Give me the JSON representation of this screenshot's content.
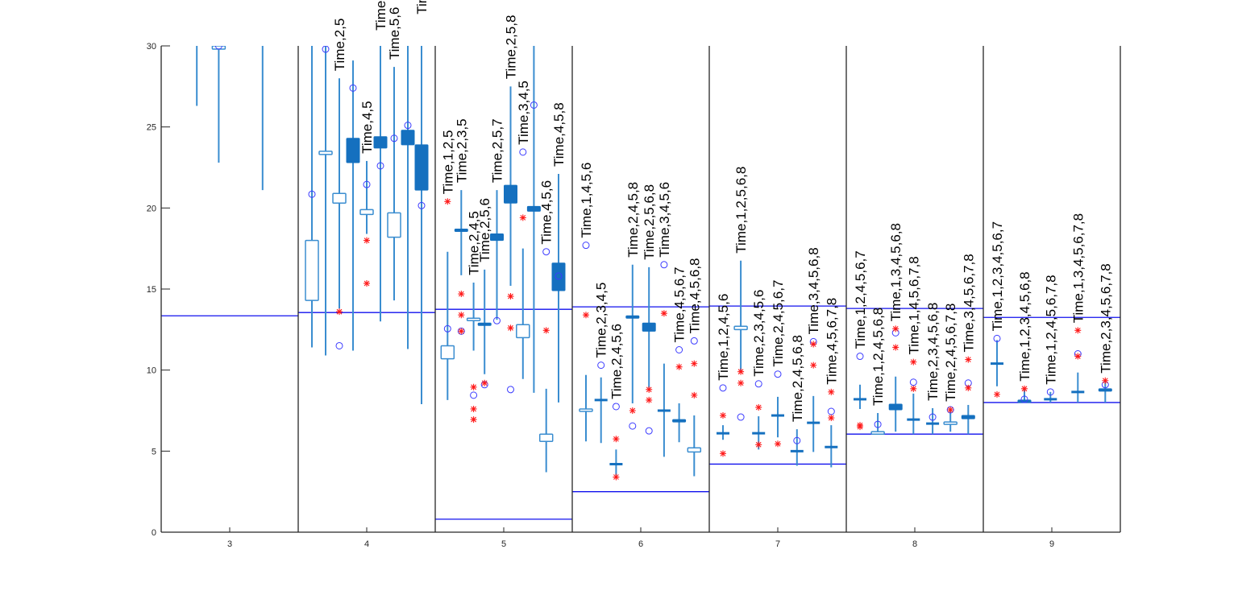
{
  "chart_data": {
    "type": "boxplot",
    "title": "",
    "xlabel": "",
    "ylabel": "",
    "ylim": [
      0,
      30
    ],
    "xlim": [
      2.5,
      9.5
    ],
    "x_ticks": [
      3,
      4,
      5,
      6,
      7,
      8,
      9
    ],
    "y_ticks": [
      0,
      5,
      10,
      15,
      20,
      25,
      30
    ],
    "group_separators": [
      3.5,
      4.5,
      5.5,
      6.5,
      7.5,
      8.5
    ],
    "colors": {
      "box": "#3a8dd0",
      "filled": "#1570bf",
      "circle": "#3b3bff",
      "star": "#ff1a1a",
      "reference_line": "#1010ee",
      "axis": "#262626"
    },
    "reference_lines": [
      {
        "x_range": [
          2.5,
          3.5
        ],
        "y": 13.35
      },
      {
        "x_range": [
          3.5,
          4.5
        ],
        "y": 13.55
      },
      {
        "x_range": [
          4.5,
          5.5
        ],
        "y": 0.8
      },
      {
        "x_range": [
          4.5,
          5.5
        ],
        "y": 13.75
      },
      {
        "x_range": [
          5.5,
          6.5
        ],
        "y": 2.5
      },
      {
        "x_range": [
          5.5,
          6.5
        ],
        "y": 13.9
      },
      {
        "x_range": [
          6.5,
          7.5
        ],
        "y": 4.2
      },
      {
        "x_range": [
          6.5,
          7.5
        ],
        "y": 13.95
      },
      {
        "x_range": [
          7.5,
          8.5
        ],
        "y": 6.05
      },
      {
        "x_range": [
          7.5,
          8.5
        ],
        "y": 13.8
      },
      {
        "x_range": [
          8.5,
          9.5
        ],
        "y": 8.0
      },
      {
        "x_range": [
          8.5,
          9.5
        ],
        "y": 13.25
      }
    ],
    "boxes": [
      {
        "x": 2.76,
        "t": "open",
        "q": [
          31,
          32
        ],
        "w": [
          26.3,
          40
        ],
        "o": [],
        "s": [],
        "label": ""
      },
      {
        "x": 2.92,
        "t": "open",
        "q": [
          29.8,
          30
        ],
        "w": [
          22.8,
          40
        ],
        "o": [
          30
        ],
        "s": [],
        "label": ""
      },
      {
        "x": 3.24,
        "t": "open",
        "q": [
          31,
          32
        ],
        "w": [
          21.1,
          40
        ],
        "o": [],
        "s": [],
        "label": ""
      },
      {
        "x": 3.6,
        "t": "open",
        "q": [
          14.3,
          18.0
        ],
        "w": [
          11.4,
          40
        ],
        "o": [
          20.85
        ],
        "s": [],
        "label": ""
      },
      {
        "x": 3.7,
        "t": "open",
        "q": [
          23.3,
          23.5
        ],
        "w": [
          10.9,
          40
        ],
        "o": [
          29.8
        ],
        "s": [],
        "label": ""
      },
      {
        "x": 3.8,
        "t": "open",
        "q": [
          20.3,
          20.9
        ],
        "w": [
          13.8,
          28.0
        ],
        "o": [
          11.5
        ],
        "s": [
          13.6
        ],
        "label": "Time,2,5"
      },
      {
        "x": 3.9,
        "t": "filled",
        "q": [
          22.8,
          24.3
        ],
        "w": [
          11.2,
          29.1
        ],
        "o": [
          27.4
        ],
        "s": [],
        "label": ""
      },
      {
        "x": 4.0,
        "t": "open",
        "q": [
          19.6,
          19.9
        ],
        "w": [
          18.4,
          22.9
        ],
        "o": [
          21.45
        ],
        "s": [
          18.0,
          15.35
        ],
        "label": "Time,4,5"
      },
      {
        "x": 4.1,
        "t": "filled",
        "q": [
          23.7,
          24.4
        ],
        "w": [
          13.0,
          30.5
        ],
        "o": [
          22.6
        ],
        "s": [],
        "label": "Time"
      },
      {
        "x": 4.2,
        "t": "open",
        "q": [
          18.2,
          19.7
        ],
        "w": [
          14.3,
          28.7
        ],
        "o": [
          24.3
        ],
        "s": [],
        "label": "Time,5,6"
      },
      {
        "x": 4.3,
        "t": "filled",
        "q": [
          23.9,
          24.8
        ],
        "w": [
          11.3,
          40
        ],
        "o": [
          25.1
        ],
        "s": [],
        "label": ""
      },
      {
        "x": 4.4,
        "t": "filled",
        "q": [
          21.1,
          23.9
        ],
        "w": [
          7.9,
          31.5
        ],
        "o": [
          20.15
        ],
        "s": [],
        "label": "Tim"
      },
      {
        "x": 4.59,
        "t": "open",
        "q": [
          10.7,
          11.5
        ],
        "w": [
          8.15,
          17.3
        ],
        "o": [
          12.55
        ],
        "s": [
          20.4
        ],
        "label": "Time,1,2,5"
      },
      {
        "x": 4.69,
        "t": "filled",
        "q": [
          18.6,
          18.7
        ],
        "w": [
          15.85,
          21.1
        ],
        "o": [
          12.4
        ],
        "s": [
          14.7,
          13.4,
          12.4
        ],
        "label": "Time,2,3,5"
      },
      {
        "x": 4.78,
        "t": "open",
        "q": [
          13.1,
          13.2
        ],
        "w": [
          11.2,
          15.4
        ],
        "o": [
          8.45
        ],
        "s": [
          8.95,
          7.6,
          6.95
        ],
        "label": "Time,2,4,5"
      },
      {
        "x": 4.86,
        "t": "filled",
        "q": [
          12.8,
          12.9
        ],
        "w": [
          9.75,
          16.2
        ],
        "o": [
          9.1
        ],
        "s": [
          9.2
        ],
        "label": "Time,2,5,6"
      },
      {
        "x": 4.95,
        "t": "filled",
        "q": [
          18.0,
          18.4
        ],
        "w": [
          13.1,
          21.1
        ],
        "o": [
          13.05
        ],
        "s": [],
        "label": "Time,2,5,7"
      },
      {
        "x": 5.05,
        "t": "filled",
        "q": [
          20.3,
          21.4
        ],
        "w": [
          15.2,
          27.5
        ],
        "o": [
          8.8
        ],
        "s": [
          14.55,
          12.6
        ],
        "label": "Time,2,5,8"
      },
      {
        "x": 5.14,
        "t": "open",
        "q": [
          12.0,
          12.8
        ],
        "w": [
          9.45,
          17.5
        ],
        "o": [
          23.45
        ],
        "s": [
          19.4
        ],
        "label": "Time,3,4,5"
      },
      {
        "x": 5.22,
        "t": "filled",
        "q": [
          19.8,
          20.1
        ],
        "w": [
          8.6,
          40
        ],
        "o": [
          26.35
        ],
        "s": [],
        "label": ""
      },
      {
        "x": 5.31,
        "t": "open",
        "q": [
          5.6,
          6.05
        ],
        "w": [
          3.7,
          8.85
        ],
        "o": [
          17.3
        ],
        "s": [
          12.45
        ],
        "label": "Time,4,5,6"
      },
      {
        "x": 5.4,
        "t": "filled",
        "q": [
          14.9,
          16.6
        ],
        "w": [
          8.0,
          22.1
        ],
        "o": [
          15.8
        ],
        "s": [],
        "label": "Time,4,5,8"
      },
      {
        "x": 5.6,
        "t": "open",
        "q": [
          7.45,
          7.6
        ],
        "w": [
          5.6,
          9.7
        ],
        "o": [
          17.7
        ],
        "s": [
          13.4
        ],
        "label": "Time,1,4,5,6"
      },
      {
        "x": 5.71,
        "t": "median",
        "q": [
          8.15,
          8.15
        ],
        "w": [
          5.5,
          9.55
        ],
        "o": [
          10.3
        ],
        "s": [],
        "label": "Time,2,3,4,5"
      },
      {
        "x": 5.82,
        "t": "median",
        "q": [
          4.2,
          4.2
        ],
        "w": [
          3.5,
          5.1
        ],
        "o": [
          7.75
        ],
        "s": [
          5.75,
          3.4
        ],
        "label": "Time,2,4,5,6"
      },
      {
        "x": 5.94,
        "t": "filled",
        "q": [
          13.2,
          13.35
        ],
        "w": [
          7.95,
          16.5
        ],
        "o": [
          6.55
        ],
        "s": [
          7.5
        ],
        "label": "Time,2,4,5,8"
      },
      {
        "x": 6.06,
        "t": "filled",
        "q": [
          12.4,
          12.9
        ],
        "w": [
          8.9,
          16.35
        ],
        "o": [
          6.25
        ],
        "s": [
          8.8,
          8.15
        ],
        "label": "Time,2,5,6,8"
      },
      {
        "x": 6.17,
        "t": "median",
        "q": [
          7.5,
          7.5
        ],
        "w": [
          4.65,
          10.4
        ],
        "o": [
          16.5
        ],
        "s": [
          13.5
        ],
        "label": "Time,3,4,5,6"
      },
      {
        "x": 6.28,
        "t": "filled",
        "q": [
          6.8,
          6.95
        ],
        "w": [
          5.55,
          7.95
        ],
        "o": [
          11.25
        ],
        "s": [
          10.2
        ],
        "label": "Time,4,5,6,7"
      },
      {
        "x": 6.39,
        "t": "open",
        "q": [
          4.95,
          5.2
        ],
        "w": [
          3.45,
          7.2
        ],
        "o": [
          11.8
        ],
        "s": [
          10.4,
          8.45
        ],
        "label": "Time,4,5,6,8"
      },
      {
        "x": 6.6,
        "t": "median",
        "q": [
          6.1,
          6.1
        ],
        "w": [
          5.7,
          6.6
        ],
        "o": [
          8.9
        ],
        "s": [
          7.2,
          4.85
        ],
        "label": "Time,1,2,4,5,6"
      },
      {
        "x": 6.73,
        "t": "open",
        "q": [
          12.5,
          12.7
        ],
        "w": [
          9.9,
          16.75
        ],
        "o": [
          7.1
        ],
        "s": [
          9.9,
          9.2
        ],
        "label": "Time,1,2,5,6,8"
      },
      {
        "x": 6.86,
        "t": "median",
        "q": [
          6.1,
          6.1
        ],
        "w": [
          5.1,
          7.15
        ],
        "o": [
          9.15
        ],
        "s": [
          7.7,
          5.4
        ],
        "label": "Time,2,3,4,5,6"
      },
      {
        "x": 7.0,
        "t": "median",
        "q": [
          7.2,
          7.2
        ],
        "w": [
          5.85,
          8.35
        ],
        "o": [
          9.75
        ],
        "s": [
          5.45
        ],
        "label": "Time,2,4,5,6,7"
      },
      {
        "x": 7.14,
        "t": "median",
        "q": [
          5.0,
          5.0
        ],
        "w": [
          4.1,
          6.35
        ],
        "o": [
          5.65
        ],
        "s": [],
        "label": "Time,2,4,5,6,8"
      },
      {
        "x": 7.26,
        "t": "median",
        "q": [
          6.75,
          6.75
        ],
        "w": [
          4.95,
          8.4
        ],
        "o": [
          11.75
        ],
        "s": [
          11.6,
          10.3
        ],
        "label": "Time,3,4,5,6,8"
      },
      {
        "x": 7.39,
        "t": "median",
        "q": [
          5.25,
          5.25
        ],
        "w": [
          4.0,
          6.6
        ],
        "o": [
          7.45
        ],
        "s": [
          7.05,
          8.65
        ],
        "label": "Time,4,5,6,7,8"
      },
      {
        "x": 7.6,
        "t": "median",
        "q": [
          8.2,
          8.2
        ],
        "w": [
          7.6,
          9.1
        ],
        "o": [
          10.85
        ],
        "s": [
          6.5,
          6.6
        ],
        "label": "Time,1,2,4,5,6,7"
      },
      {
        "x": 7.73,
        "t": "open",
        "q": [
          6.05,
          6.2
        ],
        "w": [
          6.05,
          7.35
        ],
        "o": [
          6.65
        ],
        "s": [],
        "label": "Time,1,2,4,5,6,8"
      },
      {
        "x": 7.86,
        "t": "filled",
        "q": [
          7.55,
          7.9
        ],
        "w": [
          6.2,
          9.6
        ],
        "o": [
          12.3
        ],
        "s": [
          12.55,
          11.4
        ],
        "label": "Time,1,3,4,5,6,8"
      },
      {
        "x": 7.99,
        "t": "median",
        "q": [
          6.95,
          6.95
        ],
        "w": [
          6.05,
          8.55
        ],
        "o": [
          9.25
        ],
        "s": [
          8.85,
          10.5
        ],
        "label": "Time,1,4,5,6,7,8"
      },
      {
        "x": 8.13,
        "t": "median",
        "q": [
          6.7,
          6.7
        ],
        "w": [
          6.05,
          7.65
        ],
        "o": [
          7.1
        ],
        "s": [],
        "label": "Time,2,3,4,5,6,8"
      },
      {
        "x": 8.26,
        "t": "open",
        "q": [
          6.65,
          6.8
        ],
        "w": [
          6.2,
          7.6
        ],
        "o": [
          7.55
        ],
        "s": [
          7.55
        ],
        "label": "Time,2,4,5,6,7,8"
      },
      {
        "x": 8.39,
        "t": "filled",
        "q": [
          7.0,
          7.2
        ],
        "w": [
          6.05,
          7.85
        ],
        "o": [
          9.2
        ],
        "s": [
          8.9,
          10.65
        ],
        "label": "Time,3,4,5,6,7,8"
      },
      {
        "x": 8.6,
        "t": "median",
        "q": [
          10.4,
          10.4
        ],
        "w": [
          9.0,
          11.85
        ],
        "o": [
          11.95
        ],
        "s": [
          8.5
        ],
        "label": "Time,1,2,3,4,5,6,7"
      },
      {
        "x": 8.8,
        "t": "filled",
        "q": [
          8.05,
          8.15
        ],
        "w": [
          8.0,
          8.85
        ],
        "o": [
          8.2
        ],
        "s": [
          8.85
        ],
        "label": "Time,1,2,3,4,5,6,8"
      },
      {
        "x": 8.99,
        "t": "median",
        "q": [
          8.2,
          8.2
        ],
        "w": [
          8.0,
          8.65
        ],
        "o": [
          8.65
        ],
        "s": [],
        "label": "Time,1,2,4,5,6,7,8"
      },
      {
        "x": 9.19,
        "t": "median",
        "q": [
          8.65,
          8.65
        ],
        "w": [
          8.0,
          9.85
        ],
        "o": [
          11.0
        ],
        "s": [
          10.85,
          12.45
        ],
        "label": "Time,1,3,4,5,6,7,8"
      },
      {
        "x": 9.39,
        "t": "filled",
        "q": [
          8.75,
          8.85
        ],
        "w": [
          8.0,
          9.35
        ],
        "o": [
          9.1
        ],
        "s": [
          9.35
        ],
        "label": "Time,2,3,4,5,6,7,8"
      }
    ]
  }
}
